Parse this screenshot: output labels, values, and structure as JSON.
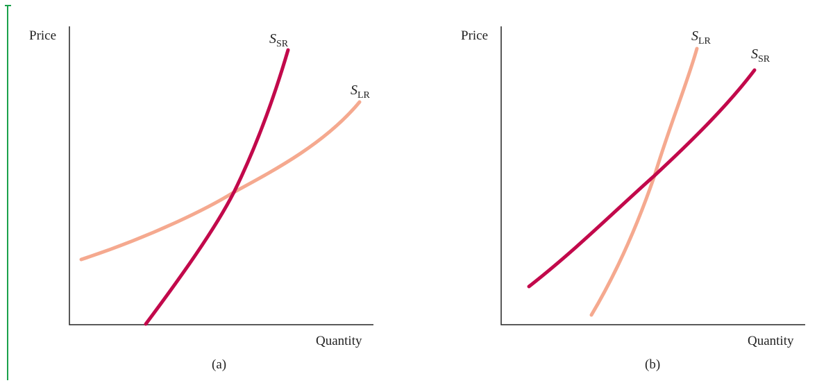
{
  "colors": {
    "short_run": "#c2094b",
    "long_run": "#f5a98f",
    "axis": "#222222",
    "margin_bar": "#1aa14a"
  },
  "panels": [
    {
      "caption": "(a)",
      "y_axis_label": "Price",
      "x_axis_label": "Quantity",
      "curves": [
        {
          "id": "lr",
          "main": "S",
          "sub": "LR"
        },
        {
          "id": "sr",
          "main": "S",
          "sub": "SR"
        }
      ]
    },
    {
      "caption": "(b)",
      "y_axis_label": "Price",
      "x_axis_label": "Quantity",
      "curves": [
        {
          "id": "lr",
          "main": "S",
          "sub": "LR"
        },
        {
          "id": "sr",
          "main": "S",
          "sub": "SR"
        }
      ]
    }
  ]
}
